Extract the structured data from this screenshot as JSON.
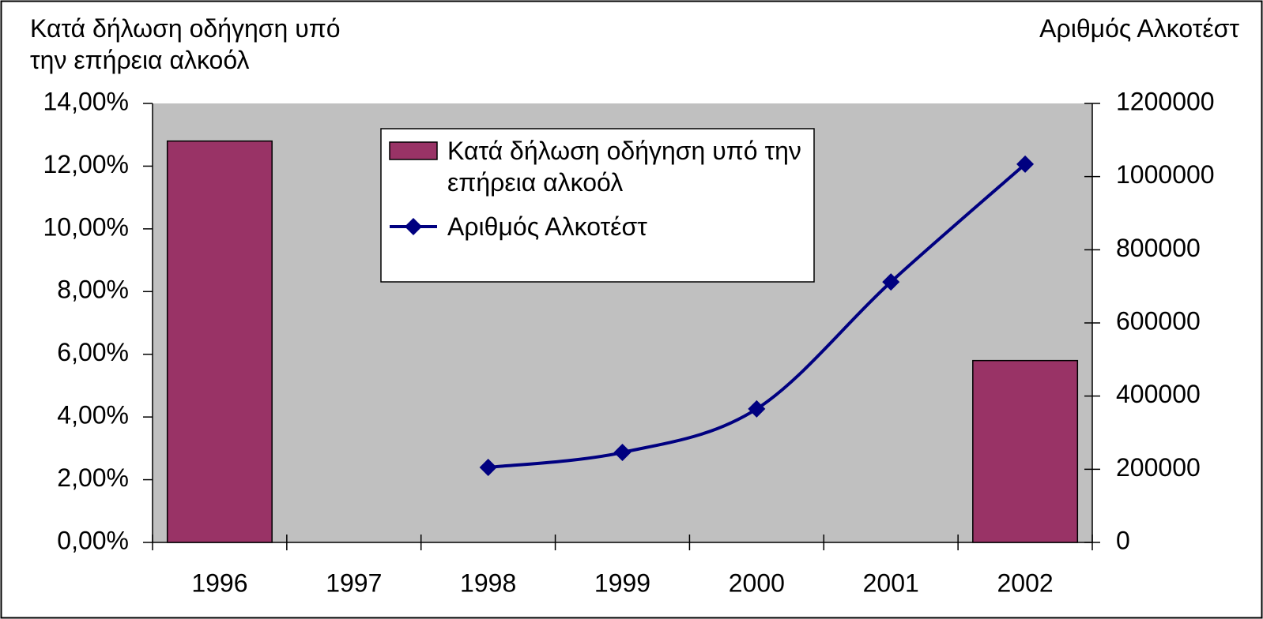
{
  "chart_data": {
    "type": "bar",
    "y_label": "Κατά δήλωση οδήγηση υπό την επήρεια αλκοόλ",
    "y2_label": "Αριθμός Αλκοτέστ",
    "categories": [
      "1996",
      "1997",
      "1998",
      "1999",
      "2000",
      "2001",
      "2002"
    ],
    "series": [
      {
        "name": "Κατά δήλωση οδήγηση υπό την επήρεια αλκοόλ",
        "type": "bar",
        "color": "#993366",
        "axis": "y",
        "values": [
          12.8,
          null,
          null,
          null,
          null,
          null,
          5.8
        ]
      },
      {
        "name": "Αριθμός Αλκοτέστ",
        "type": "line",
        "color": "#000080",
        "axis": "y2",
        "values": [
          null,
          null,
          205000,
          246000,
          365000,
          712000,
          1034000
        ]
      }
    ],
    "ylim": [
      0,
      14
    ],
    "yticks": [
      {
        "value": 0,
        "label": "0,00%"
      },
      {
        "value": 2,
        "label": "2,00%"
      },
      {
        "value": 4,
        "label": "4,00%"
      },
      {
        "value": 6,
        "label": "6,00%"
      },
      {
        "value": 8,
        "label": "8,00%"
      },
      {
        "value": 10,
        "label": "10,00%"
      },
      {
        "value": 12,
        "label": "12,00%"
      },
      {
        "value": 14,
        "label": "14,00%"
      }
    ],
    "y2lim": [
      0,
      1200000
    ],
    "y2ticks": [
      0,
      200000,
      400000,
      600000,
      800000,
      1000000,
      1200000
    ],
    "plot_background": "#c0c0c0",
    "legend": "top"
  }
}
